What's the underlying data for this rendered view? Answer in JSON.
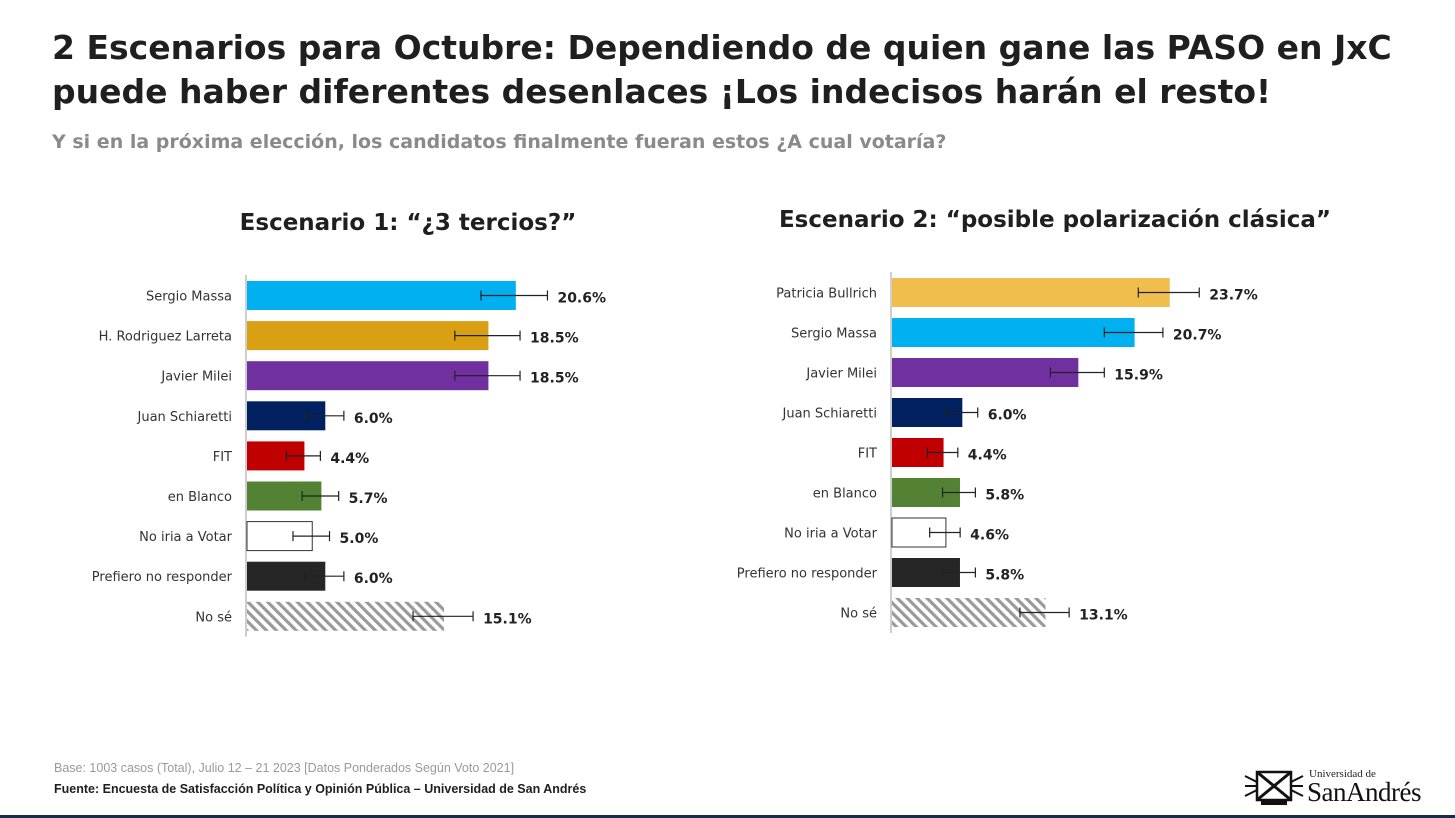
{
  "header": {
    "title_line1": "2 Escenarios para Octubre: Dependiendo de quien gane las PASO en JxC",
    "title_line2": "puede haber diferentes desenlaces ¡Los indecisos harán el resto!",
    "subtitle": "Y si en la próxima elección, los candidatos finalmente fueran estos ¿A cual votaría?"
  },
  "chart_data": [
    {
      "type": "bar",
      "orientation": "horizontal",
      "title": "Escenario 1: “¿3 tercios?”",
      "xlim": [
        0,
        25
      ],
      "categories": [
        "Sergio Massa",
        "H. Rodriguez Larreta",
        "Javier Milei",
        "Juan Schiaretti",
        "FIT",
        "en Blanco",
        "No iria a Votar",
        "Prefiero no responder",
        "No sé"
      ],
      "values": [
        20.6,
        18.5,
        18.5,
        6.0,
        4.4,
        5.7,
        5.0,
        6.0,
        15.1
      ],
      "value_labels": [
        "20.6%",
        "18.5%",
        "18.5%",
        "6.0%",
        "4.4%",
        "5.7%",
        "5.0%",
        "6.0%",
        "15.1%"
      ],
      "error_low": [
        18.0,
        16.0,
        16.0,
        4.5,
        3.1,
        4.3,
        3.6,
        4.5,
        12.8
      ],
      "error_high": [
        23.1,
        21.0,
        21.0,
        7.5,
        5.7,
        7.1,
        6.4,
        7.5,
        17.4
      ],
      "colors": [
        "#00b0f0",
        "#d9a013",
        "#7030a0",
        "#002060",
        "#c00000",
        "#548235",
        "#ffffff",
        "#262626",
        "hatch"
      ],
      "grid": false
    },
    {
      "type": "bar",
      "orientation": "horizontal",
      "title": "Escenario 2: “posible polarización clásica”",
      "xlim": [
        0,
        25
      ],
      "categories": [
        "Patricia Bullrich",
        "Sergio Massa",
        "Javier Milei",
        "Juan Schiaretti",
        "FIT",
        "en Blanco",
        "No iria a Votar",
        "Prefiero no responder",
        "No sé"
      ],
      "values": [
        23.7,
        20.7,
        15.9,
        6.0,
        4.4,
        5.8,
        4.6,
        5.8,
        13.1
      ],
      "value_labels": [
        "23.7%",
        "20.7%",
        "15.9%",
        "6.0%",
        "4.4%",
        "5.8%",
        "4.6%",
        "5.8%",
        "13.1%"
      ],
      "error_low": [
        21.1,
        18.2,
        13.6,
        4.6,
        3.1,
        4.4,
        3.3,
        4.4,
        11.0
      ],
      "error_high": [
        26.3,
        23.2,
        18.2,
        7.4,
        5.7,
        7.2,
        5.9,
        7.2,
        15.2
      ],
      "colors": [
        "#f0be4c",
        "#00b0f0",
        "#7030a0",
        "#002060",
        "#c00000",
        "#548235",
        "#ffffff",
        "#262626",
        "hatch"
      ],
      "grid": false
    }
  ],
  "footer": {
    "base": "Base: 1003 casos (Total), Julio 12 – 21 2023 [Datos Ponderados Según Voto 2021]",
    "source": "Fuente: Encuesta de Satisfacción Política y Opinión Pública – Universidad de San Andrés"
  },
  "logo": {
    "small_text": "Universidad de",
    "big_text": "SanAndrés",
    "icon": "university-crest-icon"
  }
}
